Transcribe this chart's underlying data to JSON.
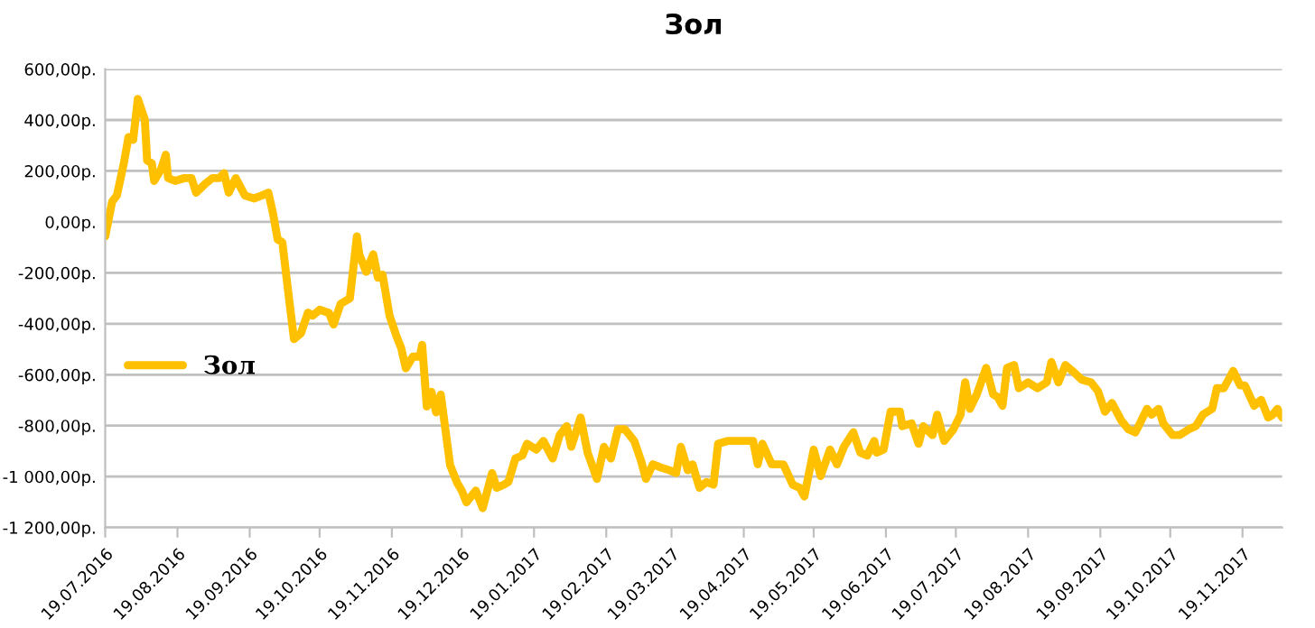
{
  "chart_data": {
    "type": "line",
    "title": "Зол",
    "x": [
      "2016-07-19",
      "2016-07-22",
      "2016-07-24",
      "2016-07-27",
      "2016-07-29",
      "2016-07-31",
      "2016-08-02",
      "2016-08-05",
      "2016-08-06",
      "2016-08-08",
      "2016-08-09",
      "2016-08-12",
      "2016-08-14",
      "2016-08-15",
      "2016-08-18",
      "2016-08-22",
      "2016-08-25",
      "2016-08-27",
      "2016-08-31",
      "2016-09-03",
      "2016-09-06",
      "2016-09-08",
      "2016-09-10",
      "2016-09-13",
      "2016-09-17",
      "2016-09-21",
      "2016-09-24",
      "2016-09-27",
      "2016-09-29",
      "2016-10-01",
      "2016-10-03",
      "2016-10-06",
      "2016-10-08",
      "2016-10-11",
      "2016-10-14",
      "2016-10-16",
      "2016-10-19",
      "2016-10-23",
      "2016-10-25",
      "2016-10-28",
      "2016-11-01",
      "2016-11-04",
      "2016-11-05",
      "2016-11-08",
      "2016-11-11",
      "2016-11-13",
      "2016-11-15",
      "2016-11-18",
      "2016-11-21",
      "2016-11-23",
      "2016-11-25",
      "2016-11-28",
      "2016-12-01",
      "2016-12-02",
      "2016-12-04",
      "2016-12-06",
      "2016-12-08",
      "2016-12-10",
      "2016-12-12",
      "2016-12-14",
      "2016-12-17",
      "2016-12-19",
      "2016-12-21",
      "2016-12-25",
      "2016-12-28",
      "2017-01-01",
      "2017-01-03",
      "2017-01-06",
      "2017-01-08",
      "2017-01-11",
      "2017-01-14",
      "2017-01-16",
      "2017-01-20",
      "2017-01-23",
      "2017-01-27",
      "2017-01-30",
      "2017-02-02",
      "2017-02-04",
      "2017-02-08",
      "2017-02-11",
      "2017-02-15",
      "2017-02-18",
      "2017-02-21",
      "2017-02-24",
      "2017-02-27",
      "2017-03-03",
      "2017-03-06",
      "2017-03-08",
      "2017-03-11",
      "2017-03-14",
      "2017-03-18",
      "2017-03-21",
      "2017-03-23",
      "2017-03-26",
      "2017-03-28",
      "2017-03-31",
      "2017-04-03",
      "2017-04-06",
      "2017-04-08",
      "2017-04-12",
      "2017-04-16",
      "2017-04-19",
      "2017-04-23",
      "2017-04-25",
      "2017-04-27",
      "2017-05-01",
      "2017-05-06",
      "2017-05-10",
      "2017-05-13",
      "2017-05-15",
      "2017-05-19",
      "2017-05-22",
      "2017-05-26",
      "2017-05-29",
      "2017-06-01",
      "2017-06-05",
      "2017-06-08",
      "2017-06-11",
      "2017-06-14",
      "2017-06-15",
      "2017-06-18",
      "2017-06-21",
      "2017-06-25",
      "2017-06-26",
      "2017-06-30",
      "2017-07-03",
      "2017-07-05",
      "2017-07-09",
      "2017-07-11",
      "2017-07-14",
      "2017-07-18",
      "2017-07-21",
      "2017-07-23",
      "2017-07-25",
      "2017-07-28",
      "2017-08-01",
      "2017-08-04",
      "2017-08-06",
      "2017-08-08",
      "2017-08-10",
      "2017-08-13",
      "2017-08-15",
      "2017-08-19",
      "2017-08-23",
      "2017-08-27",
      "2017-08-29",
      "2017-09-01",
      "2017-09-04",
      "2017-09-07",
      "2017-09-11",
      "2017-09-15",
      "2017-09-18",
      "2017-09-21",
      "2017-09-24",
      "2017-09-28",
      "2017-10-01",
      "2017-10-04",
      "2017-10-06",
      "2017-10-09",
      "2017-10-11",
      "2017-10-14",
      "2017-10-16",
      "2017-10-20",
      "2017-10-23",
      "2017-10-27",
      "2017-10-30",
      "2017-11-02",
      "2017-11-06",
      "2017-11-08",
      "2017-11-11",
      "2017-11-15",
      "2017-11-18",
      "2017-11-20",
      "2017-11-24",
      "2017-11-27",
      "2017-11-30",
      "2017-12-02",
      "2017-12-04",
      "2017-12-06"
    ],
    "series": [
      {
        "name": "Зол",
        "color": "#ffc000",
        "values": [
          -57,
          80,
          103,
          230,
          333,
          322,
          483,
          402,
          241,
          230,
          161,
          207,
          264,
          172,
          161,
          172,
          172,
          115,
          150,
          172,
          172,
          191,
          115,
          172,
          103,
          92,
          103,
          115,
          34,
          -69,
          -80,
          -310,
          -460,
          -437,
          -356,
          -368,
          -345,
          -357,
          -403,
          -322,
          -300,
          -57,
          -127,
          -196,
          -127,
          -219,
          -207,
          -368,
          -449,
          -495,
          -575,
          -529,
          -529,
          -483,
          -725,
          -667,
          -748,
          -678,
          -817,
          -955,
          -1024,
          -1055,
          -1101,
          -1055,
          -1124,
          -986,
          -1044,
          -1032,
          -1021,
          -929,
          -917,
          -871,
          -894,
          -860,
          -929,
          -837,
          -802,
          -883,
          -768,
          -906,
          -1009,
          -883,
          -929,
          -814,
          -814,
          -860,
          -940,
          -1009,
          -952,
          -963,
          -975,
          -986,
          -883,
          -975,
          -952,
          -1044,
          -1021,
          -1032,
          -871,
          -860,
          -860,
          -860,
          -860,
          -952,
          -871,
          -952,
          -952,
          -1032,
          -1044,
          -1078,
          -894,
          -998,
          -894,
          -952,
          -883,
          -826,
          -906,
          -917,
          -860,
          -906,
          -894,
          -745,
          -745,
          -802,
          -791,
          -871,
          -802,
          -837,
          -757,
          -860,
          -814,
          -757,
          -630,
          -734,
          -677,
          -573,
          -677,
          -688,
          -722,
          -573,
          -562,
          -653,
          -630,
          -653,
          -630,
          -550,
          -630,
          -562,
          -585,
          -619,
          -630,
          -665,
          -745,
          -711,
          -780,
          -814,
          -826,
          -791,
          -734,
          -757,
          -734,
          -791,
          -837,
          -837,
          -814,
          -802,
          -757,
          -734,
          -653,
          -653,
          -585,
          -642,
          -642,
          -722,
          -699,
          -768,
          -757,
          -734,
          -768
        ]
      }
    ],
    "xlim": [
      "2016-07-19",
      "2017-12-06"
    ],
    "xticks": [
      {
        "value": "2016-07-19",
        "label": "19.07.2016"
      },
      {
        "value": "2016-08-19",
        "label": "19.08.2016"
      },
      {
        "value": "2016-09-19",
        "label": "19.09.2016"
      },
      {
        "value": "2016-10-19",
        "label": "19.10.2016"
      },
      {
        "value": "2016-11-19",
        "label": "19.11.2016"
      },
      {
        "value": "2016-12-19",
        "label": "19.12.2016"
      },
      {
        "value": "2017-01-19",
        "label": "19.01.2017"
      },
      {
        "value": "2017-02-19",
        "label": "19.02.2017"
      },
      {
        "value": "2017-03-19",
        "label": "19.03.2017"
      },
      {
        "value": "2017-04-19",
        "label": "19.04.2017"
      },
      {
        "value": "2017-05-19",
        "label": "19.05.2017"
      },
      {
        "value": "2017-06-19",
        "label": "19.06.2017"
      },
      {
        "value": "2017-07-19",
        "label": "19.07.2017"
      },
      {
        "value": "2017-08-19",
        "label": "19.08.2017"
      },
      {
        "value": "2017-09-19",
        "label": "19.09.2017"
      },
      {
        "value": "2017-10-19",
        "label": "19.10.2017"
      },
      {
        "value": "2017-11-19",
        "label": "19.11.2017"
      }
    ],
    "ylim": [
      -1200,
      600
    ],
    "yticks": [
      {
        "value": -1200,
        "label": "-1 200,00р."
      },
      {
        "value": -1000,
        "label": "-1 000,00р."
      },
      {
        "value": -800,
        "label": "-800,00р."
      },
      {
        "value": -600,
        "label": "-600,00р."
      },
      {
        "value": -400,
        "label": "-400,00р."
      },
      {
        "value": -200,
        "label": "-200,00р."
      },
      {
        "value": 0,
        "label": "0,00р."
      },
      {
        "value": 200,
        "label": "200,00р."
      },
      {
        "value": 400,
        "label": "400,00р."
      },
      {
        "value": 600,
        "label": "600,00р."
      }
    ],
    "grid": "y",
    "legend": "left",
    "marker": "none",
    "line_style": "solid"
  }
}
